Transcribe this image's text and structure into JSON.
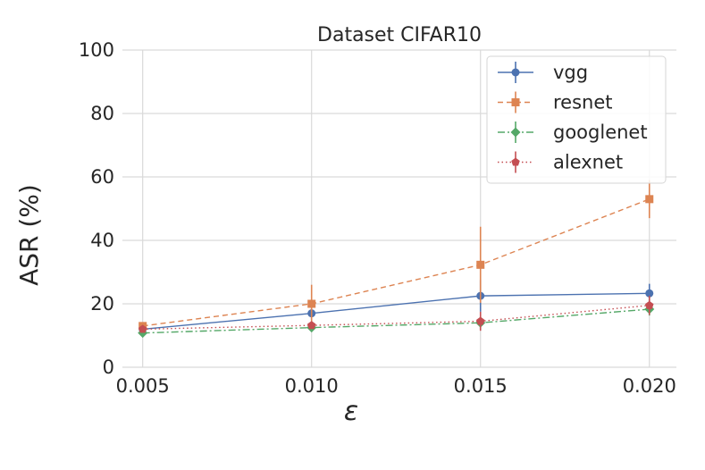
{
  "chart_data": {
    "type": "line",
    "title": "Dataset CIFAR10",
    "xlabel": "ε",
    "ylabel": "ASR (%)",
    "x": [
      0.005,
      0.01,
      0.015,
      0.02
    ],
    "x_tick_labels": [
      "0.005",
      "0.010",
      "0.015",
      "0.020"
    ],
    "xlim": [
      0.0044,
      0.0208
    ],
    "ylim": [
      0,
      100
    ],
    "y_ticks": [
      0,
      20,
      40,
      60,
      80,
      100
    ],
    "y_tick_labels": [
      "0",
      "20",
      "40",
      "60",
      "80",
      "100"
    ],
    "grid": true,
    "legend_position": "top-right",
    "series": [
      {
        "name": "vgg",
        "values": [
          12,
          17,
          22.5,
          23.3
        ],
        "errors": [
          1,
          2,
          5,
          3
        ],
        "color": "#4c72b0",
        "linestyle": "solid",
        "marker": "circle"
      },
      {
        "name": "resnet",
        "values": [
          13,
          20,
          32.3,
          53
        ],
        "errors": [
          1,
          6,
          12,
          6
        ],
        "color": "#dd8452",
        "linestyle": "dashed",
        "marker": "square"
      },
      {
        "name": "googlenet",
        "values": [
          10.8,
          12.5,
          14,
          18.3
        ],
        "errors": [
          1,
          1,
          2,
          2
        ],
        "color": "#55a868",
        "linestyle": "dashdot",
        "marker": "diamond"
      },
      {
        "name": "alexnet",
        "values": [
          12,
          13.2,
          14.5,
          19.5
        ],
        "errors": [
          1,
          1,
          3,
          3
        ],
        "color": "#c44e52",
        "linestyle": "dotted",
        "marker": "pentagon"
      }
    ]
  }
}
